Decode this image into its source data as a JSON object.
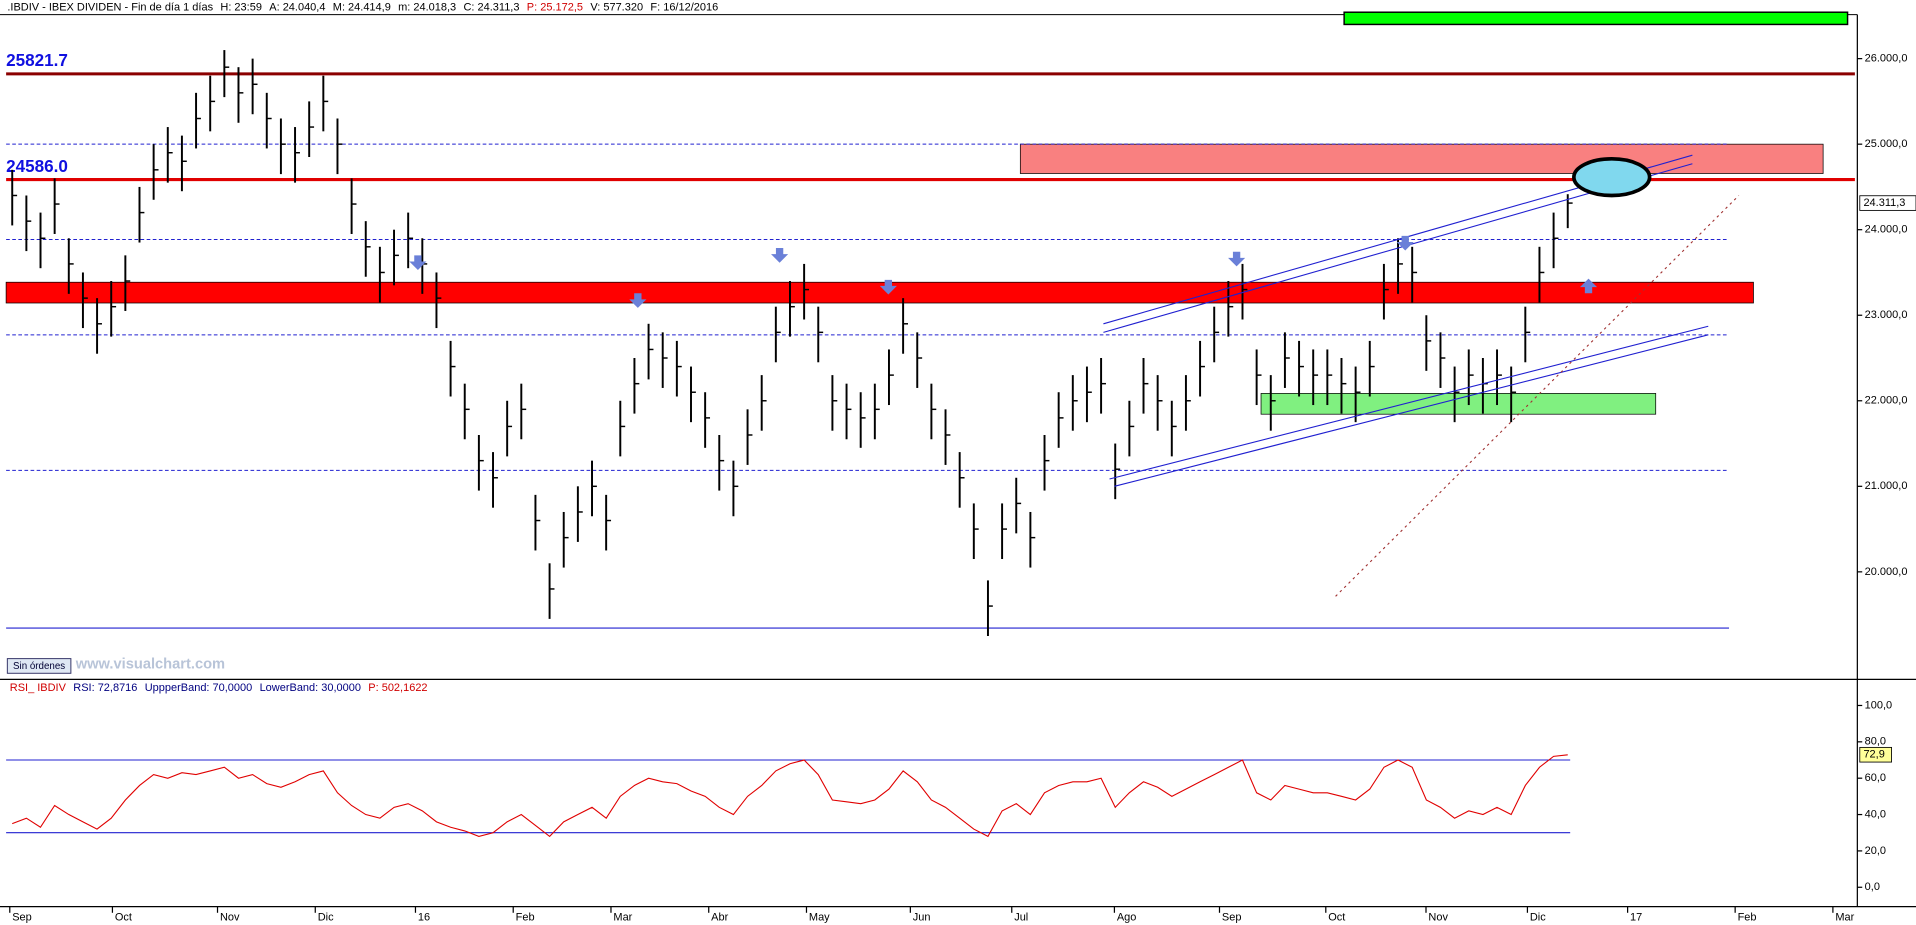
{
  "header": {
    "items": [
      {
        "text": ".IBDIV - IBEX DIVIDEN - Fin de día 1 días",
        "color": "#000000"
      },
      {
        "text": "H: 23:59",
        "color": "#000000"
      },
      {
        "text": "A: 24.040,4",
        "color": "#000000"
      },
      {
        "text": "M: 24.414,9",
        "color": "#000000"
      },
      {
        "text": "m: 24.018,3",
        "color": "#000000"
      },
      {
        "text": "C: 24.311,3",
        "color": "#000000"
      },
      {
        "text": "P: 25.172,5",
        "color": "#d00000"
      },
      {
        "text": "V: 577.320",
        "color": "#000000"
      },
      {
        "text": "F: 16/12/2016",
        "color": "#000000"
      }
    ]
  },
  "button": "Sin órdenes",
  "watermark": "www.visualchart.com",
  "x_labels": [
    "Sep",
    "Oct",
    "Nov",
    "Dic",
    "16",
    "Feb",
    "Mar",
    "Abr",
    "May",
    "Jun",
    "Jul",
    "Ago",
    "Sep",
    "Oct",
    "Nov",
    "Dic",
    "17",
    "Feb",
    "Mar"
  ],
  "chart_data": [
    {
      "type": "ohlc",
      "color": "#000000",
      "ylim": [
        18757,
        26514
      ],
      "yticks": [
        {
          "value": 20000,
          "label": "20.000,0"
        },
        {
          "value": 21000,
          "label": "21.000,0"
        },
        {
          "value": 22000,
          "label": "22.000,0"
        },
        {
          "value": 23000,
          "label": "23.000,0"
        },
        {
          "value": 24000,
          "label": "24.000,0"
        },
        {
          "value": 25000,
          "label": "25.000,0"
        },
        {
          "value": 26000,
          "label": "26.000,0"
        }
      ],
      "last_value_label": "24.311,3",
      "levels": [
        {
          "value": 25821.7,
          "label": "25821.7",
          "color": "#8b0000"
        },
        {
          "value": 24586.0,
          "label": "24586.0",
          "color": "#e00000"
        }
      ],
      "reference_lines": [
        25000,
        23886,
        22771,
        21186
      ],
      "support_line": 19343,
      "zones": [
        {
          "from": 23143,
          "to": 23386,
          "color": "#ff0000"
        },
        {
          "from": 24657,
          "to": 25000,
          "color": "#f98080"
        },
        {
          "from": 21843,
          "to": 22086,
          "color": "#80f080"
        }
      ],
      "close": [
        24400,
        24100,
        23900,
        24300,
        23600,
        23200,
        22900,
        23100,
        23400,
        24200,
        24700,
        24900,
        24800,
        25300,
        25500,
        25900,
        25600,
        25700,
        25300,
        25000,
        24900,
        25200,
        25500,
        25000,
        24300,
        23800,
        23500,
        23700,
        23900,
        23600,
        23200,
        22400,
        21900,
        21300,
        21100,
        21700,
        21900,
        20600,
        19800,
        20400,
        20700,
        21000,
        20600,
        21700,
        22200,
        22600,
        22500,
        22400,
        22100,
        21800,
        21300,
        21000,
        21600,
        22000,
        22800,
        23100,
        23300,
        22800,
        22000,
        21900,
        21800,
        21900,
        22300,
        22900,
        22500,
        21900,
        21600,
        21100,
        20500,
        19600,
        20500,
        20800,
        20400,
        21300,
        21800,
        22000,
        22100,
        22200,
        21200,
        21700,
        22200,
        22000,
        21700,
        22000,
        22400,
        22800,
        23100,
        23300,
        22300,
        22000,
        22500,
        22400,
        22300,
        22300,
        22200,
        22100,
        22400,
        23300,
        23600,
        23500,
        22700,
        22500,
        22100,
        22300,
        22200,
        22300,
        22100,
        22800,
        23500,
        23900,
        24311.3
      ],
      "high": [
        24700,
        24400,
        24200,
        24600,
        23900,
        23500,
        23200,
        23400,
        23700,
        24500,
        25000,
        25200,
        25100,
        25600,
        25800,
        26100,
        25900,
        26000,
        25600,
        25300,
        25200,
        25500,
        25800,
        25300,
        24600,
        24100,
        23800,
        24000,
        24200,
        23900,
        23500,
        22700,
        22200,
        21600,
        21400,
        22000,
        22200,
        20900,
        20100,
        20700,
        21000,
        21300,
        20900,
        22000,
        22500,
        22900,
        22800,
        22700,
        22400,
        22100,
        21600,
        21300,
        21900,
        22300,
        23100,
        23400,
        23600,
        23100,
        22300,
        22200,
        22100,
        22200,
        22600,
        23200,
        22800,
        22200,
        21900,
        21400,
        20800,
        19900,
        20800,
        21100,
        20700,
        21600,
        22100,
        22300,
        22400,
        22500,
        21500,
        22000,
        22500,
        22300,
        22000,
        22300,
        22700,
        23100,
        23400,
        23600,
        22600,
        22300,
        22800,
        22700,
        22600,
        22600,
        22500,
        22400,
        22700,
        23600,
        23900,
        23800,
        23000,
        22800,
        22400,
        22600,
        22500,
        22600,
        22400,
        23100,
        23800,
        24200,
        24414.9
      ],
      "low": [
        24050,
        23750,
        23550,
        23950,
        23250,
        22850,
        22550,
        22750,
        23050,
        23850,
        24350,
        24550,
        24450,
        24950,
        25150,
        25550,
        25250,
        25350,
        24950,
        24650,
        24550,
        24850,
        25150,
        24650,
        23950,
        23450,
        23150,
        23350,
        23550,
        23250,
        22850,
        22050,
        21550,
        20950,
        20750,
        21350,
        21550,
        20250,
        19450,
        20050,
        20350,
        20650,
        20250,
        21350,
        21850,
        22250,
        22150,
        22050,
        21750,
        21450,
        20950,
        20650,
        21250,
        21650,
        22450,
        22750,
        22950,
        22450,
        21650,
        21550,
        21450,
        21550,
        21950,
        22550,
        22150,
        21550,
        21250,
        20750,
        20150,
        19250,
        20150,
        20450,
        20050,
        20950,
        21450,
        21650,
        21750,
        21850,
        20850,
        21350,
        21850,
        21650,
        21350,
        21650,
        22050,
        22450,
        22750,
        22950,
        21950,
        21650,
        22150,
        22050,
        21950,
        21950,
        21850,
        21750,
        22050,
        22950,
        23250,
        23150,
        22350,
        22150,
        21750,
        21950,
        21850,
        21950,
        21750,
        22450,
        23150,
        23550,
        24018.3
      ]
    },
    {
      "type": "line",
      "color": "#e00000",
      "header": [
        {
          "text": "RSI_ IBDIV",
          "color": "#d00000"
        },
        {
          "text": "RSI: 72,8716",
          "color": "#000080"
        },
        {
          "text": "UppperBand: 70,0000",
          "color": "#000080"
        },
        {
          "text": "LowerBand: 30,0000",
          "color": "#000080"
        },
        {
          "text": "P: 502,1622",
          "color": "#d00000"
        }
      ],
      "ylim": [
        -10,
        113
      ],
      "yticks": [
        {
          "value": 0,
          "label": "0,0"
        },
        {
          "value": 20,
          "label": "20,0"
        },
        {
          "value": 40,
          "label": "40,0"
        },
        {
          "value": 60,
          "label": "60,0"
        },
        {
          "value": 80,
          "label": "80,0"
        },
        {
          "value": 100,
          "label": "100,0"
        }
      ],
      "bands": [
        70,
        30
      ],
      "last_value_label": "72,9",
      "values": [
        35,
        38,
        33,
        45,
        40,
        36,
        32,
        38,
        48,
        56,
        62,
        60,
        63,
        62,
        64,
        66,
        60,
        62,
        57,
        55,
        58,
        62,
        64,
        52,
        45,
        40,
        38,
        44,
        46,
        42,
        36,
        33,
        31,
        28,
        30,
        36,
        40,
        34,
        28,
        36,
        40,
        44,
        38,
        50,
        56,
        60,
        58,
        57,
        53,
        50,
        44,
        40,
        50,
        56,
        64,
        68,
        70,
        62,
        48,
        47,
        46,
        48,
        54,
        64,
        58,
        48,
        44,
        38,
        32,
        28,
        42,
        46,
        40,
        52,
        56,
        58,
        58,
        60,
        44,
        52,
        58,
        55,
        50,
        54,
        58,
        62,
        66,
        70,
        52,
        48,
        56,
        54,
        52,
        52,
        50,
        48,
        54,
        66,
        70,
        66,
        48,
        44,
        38,
        42,
        40,
        44,
        40,
        56,
        66,
        72,
        72.9
      ]
    }
  ]
}
